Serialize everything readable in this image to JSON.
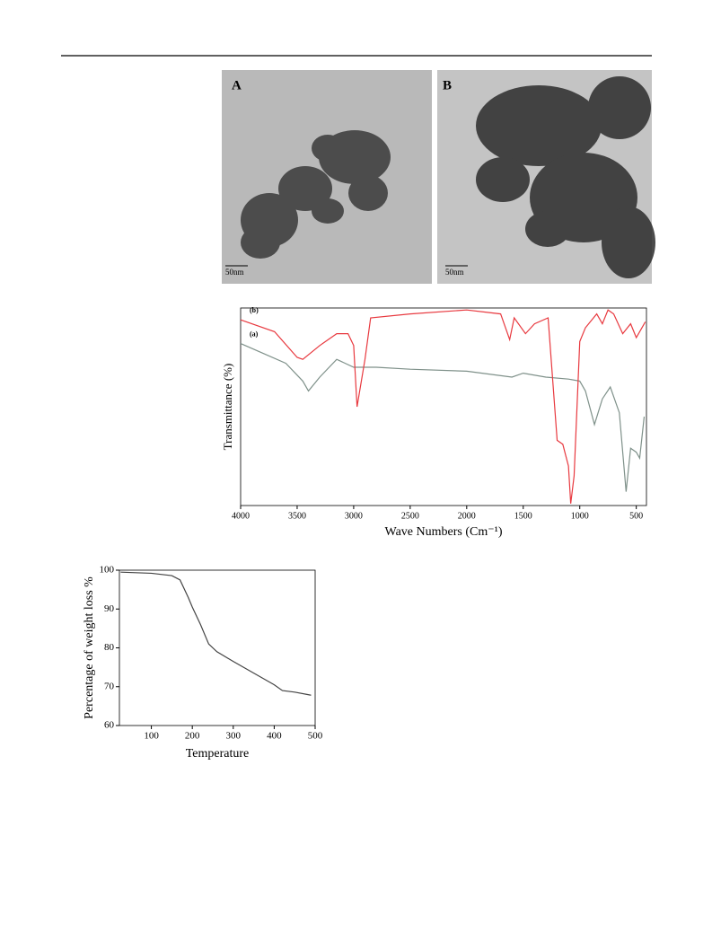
{
  "figures": {
    "tem": [
      {
        "label": "A",
        "scale": "50nm"
      },
      {
        "label": "B",
        "scale": "50nm"
      }
    ]
  },
  "chart_data": [
    {
      "type": "line",
      "xlabel": "Wave Numbers (Cm⁻¹)",
      "ylabel": "Transmittance (%)",
      "xlim": [
        4000,
        410
      ],
      "ylim": [
        0,
        100
      ],
      "xticks": [
        4000,
        3500,
        3000,
        2500,
        2000,
        1500,
        1000,
        500
      ],
      "series": [
        {
          "name": "(a)",
          "color": "#7f918a",
          "x": [
            4000,
            3800,
            3600,
            3450,
            3400,
            3300,
            3150,
            3000,
            2800,
            2500,
            2000,
            1600,
            1500,
            1300,
            1100,
            1000,
            950,
            870,
            800,
            730,
            650,
            590,
            550,
            500,
            470,
            430
          ],
          "values": [
            82,
            77,
            72,
            63,
            58,
            65,
            74,
            70,
            70,
            69,
            68,
            65,
            67,
            65,
            64,
            63,
            58,
            41,
            54,
            60,
            47,
            7,
            29,
            27,
            24,
            45
          ]
        },
        {
          "name": "(b)",
          "color": "#e8393f",
          "x": [
            4000,
            3700,
            3500,
            3450,
            3300,
            3150,
            3050,
            3000,
            2970,
            2900,
            2850,
            2500,
            2000,
            1700,
            1620,
            1580,
            1480,
            1400,
            1280,
            1200,
            1150,
            1100,
            1080,
            1050,
            1000,
            950,
            850,
            800,
            750,
            700,
            620,
            550,
            500,
            420
          ],
          "values": [
            94,
            88,
            75,
            74,
            81,
            87,
            87,
            81,
            50,
            74,
            95,
            97,
            99,
            97,
            84,
            95,
            87,
            92,
            95,
            33,
            31,
            20,
            1,
            15,
            83,
            90,
            97,
            92,
            99,
            97,
            87,
            92,
            85,
            93
          ]
        }
      ]
    },
    {
      "type": "line",
      "xlabel": "Temperature",
      "ylabel": "Percentage of weight loss %",
      "xlim": [
        22,
        500
      ],
      "ylim": [
        60,
        100
      ],
      "xticks": [
        100,
        200,
        300,
        400,
        500
      ],
      "yticks": [
        60,
        70,
        80,
        90,
        100
      ],
      "series": [
        {
          "name": null,
          "color": "#444444",
          "x": [
            25,
            100,
            150,
            170,
            190,
            200,
            220,
            240,
            260,
            300,
            350,
            400,
            420,
            450,
            480,
            490
          ],
          "values": [
            99.5,
            99.2,
            98.6,
            97.5,
            93,
            90.5,
            86,
            81,
            79,
            76.5,
            73.5,
            70.5,
            69,
            68.6,
            68,
            67.8
          ]
        }
      ]
    }
  ]
}
